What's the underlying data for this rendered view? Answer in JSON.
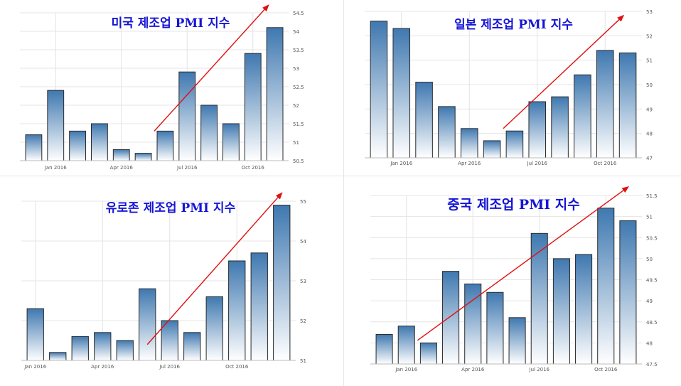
{
  "chart_data": [
    {
      "type": "bar",
      "title": "미국 제조업 PMI 지수",
      "x": [
        "2015-12",
        "2016-01",
        "2016-02",
        "2016-03",
        "2016-04",
        "2016-05",
        "2016-06",
        "2016-07",
        "2016-08",
        "2016-09",
        "2016-10",
        "2016-11"
      ],
      "xticks": [
        "Jan 2016",
        "Apr 2016",
        "Jul 2016",
        "Oct 2016"
      ],
      "values": [
        51.2,
        52.4,
        51.3,
        51.5,
        50.8,
        50.7,
        51.3,
        52.9,
        52.0,
        51.5,
        53.4,
        54.1
      ],
      "ylim": [
        50.5,
        54.5
      ],
      "yticks": [
        "50.5",
        "51",
        "51.5",
        "52",
        "52.5",
        "53",
        "53.5",
        "54",
        "54.5"
      ],
      "grid": true,
      "trend_arrow": true
    },
    {
      "type": "bar",
      "title": "일본 제조업 PMI 지수",
      "x": [
        "2015-12",
        "2016-01",
        "2016-02",
        "2016-03",
        "2016-04",
        "2016-05",
        "2016-06",
        "2016-07",
        "2016-08",
        "2016-09",
        "2016-10",
        "2016-11"
      ],
      "xticks": [
        "Jan 2016",
        "Apr 2016",
        "Jul 2016",
        "Oct 2016"
      ],
      "values": [
        52.6,
        52.3,
        50.1,
        49.1,
        48.2,
        47.7,
        48.1,
        49.3,
        49.5,
        50.4,
        51.4,
        51.3
      ],
      "ylim": [
        47,
        53
      ],
      "yticks": [
        "47",
        "48",
        "49",
        "50",
        "51",
        "52",
        "53"
      ],
      "grid": true,
      "trend_arrow": true
    },
    {
      "type": "bar",
      "title": "유로존 제조업 PMI 지수",
      "x": [
        "2015-12",
        "2016-01",
        "2016-02",
        "2016-03",
        "2016-04",
        "2016-05",
        "2016-06",
        "2016-07",
        "2016-08",
        "2016-09",
        "2016-10",
        "2016-11"
      ],
      "xticks": [
        "Jan 2016",
        "Apr 2016",
        "Jul 2016",
        "Oct 2016"
      ],
      "values": [
        52.3,
        51.2,
        51.6,
        51.7,
        51.5,
        52.8,
        52.0,
        51.7,
        52.6,
        53.5,
        53.7,
        54.9
      ],
      "ylim": [
        51,
        55
      ],
      "yticks": [
        "51",
        "52",
        "53",
        "54",
        "55"
      ],
      "grid": true,
      "trend_arrow": true
    },
    {
      "type": "bar",
      "title": "중국 제조업 PMI 지수",
      "x": [
        "2015-12",
        "2016-01",
        "2016-02",
        "2016-03",
        "2016-04",
        "2016-05",
        "2016-06",
        "2016-07",
        "2016-08",
        "2016-09",
        "2016-10",
        "2016-11"
      ],
      "xticks": [
        "Jan 2016",
        "Apr 2016",
        "Jul 2016",
        "Oct 2016"
      ],
      "values": [
        48.2,
        48.4,
        48.0,
        49.7,
        49.4,
        49.2,
        48.6,
        50.6,
        50.0,
        50.1,
        51.2,
        50.9
      ],
      "ylim": [
        47.5,
        51.5
      ],
      "yticks": [
        "47.5",
        "48",
        "48.5",
        "49",
        "49.5",
        "50",
        "50.5",
        "51",
        "51.5"
      ],
      "grid": true,
      "trend_arrow": true
    }
  ],
  "colors": {
    "bar_top": "#3f78b0",
    "bar_bottom": "#ffffff",
    "bar_border": "#2a2a2a",
    "arrow": "#e01010",
    "title": "#1515d6",
    "grid": "#e4e4e4"
  }
}
